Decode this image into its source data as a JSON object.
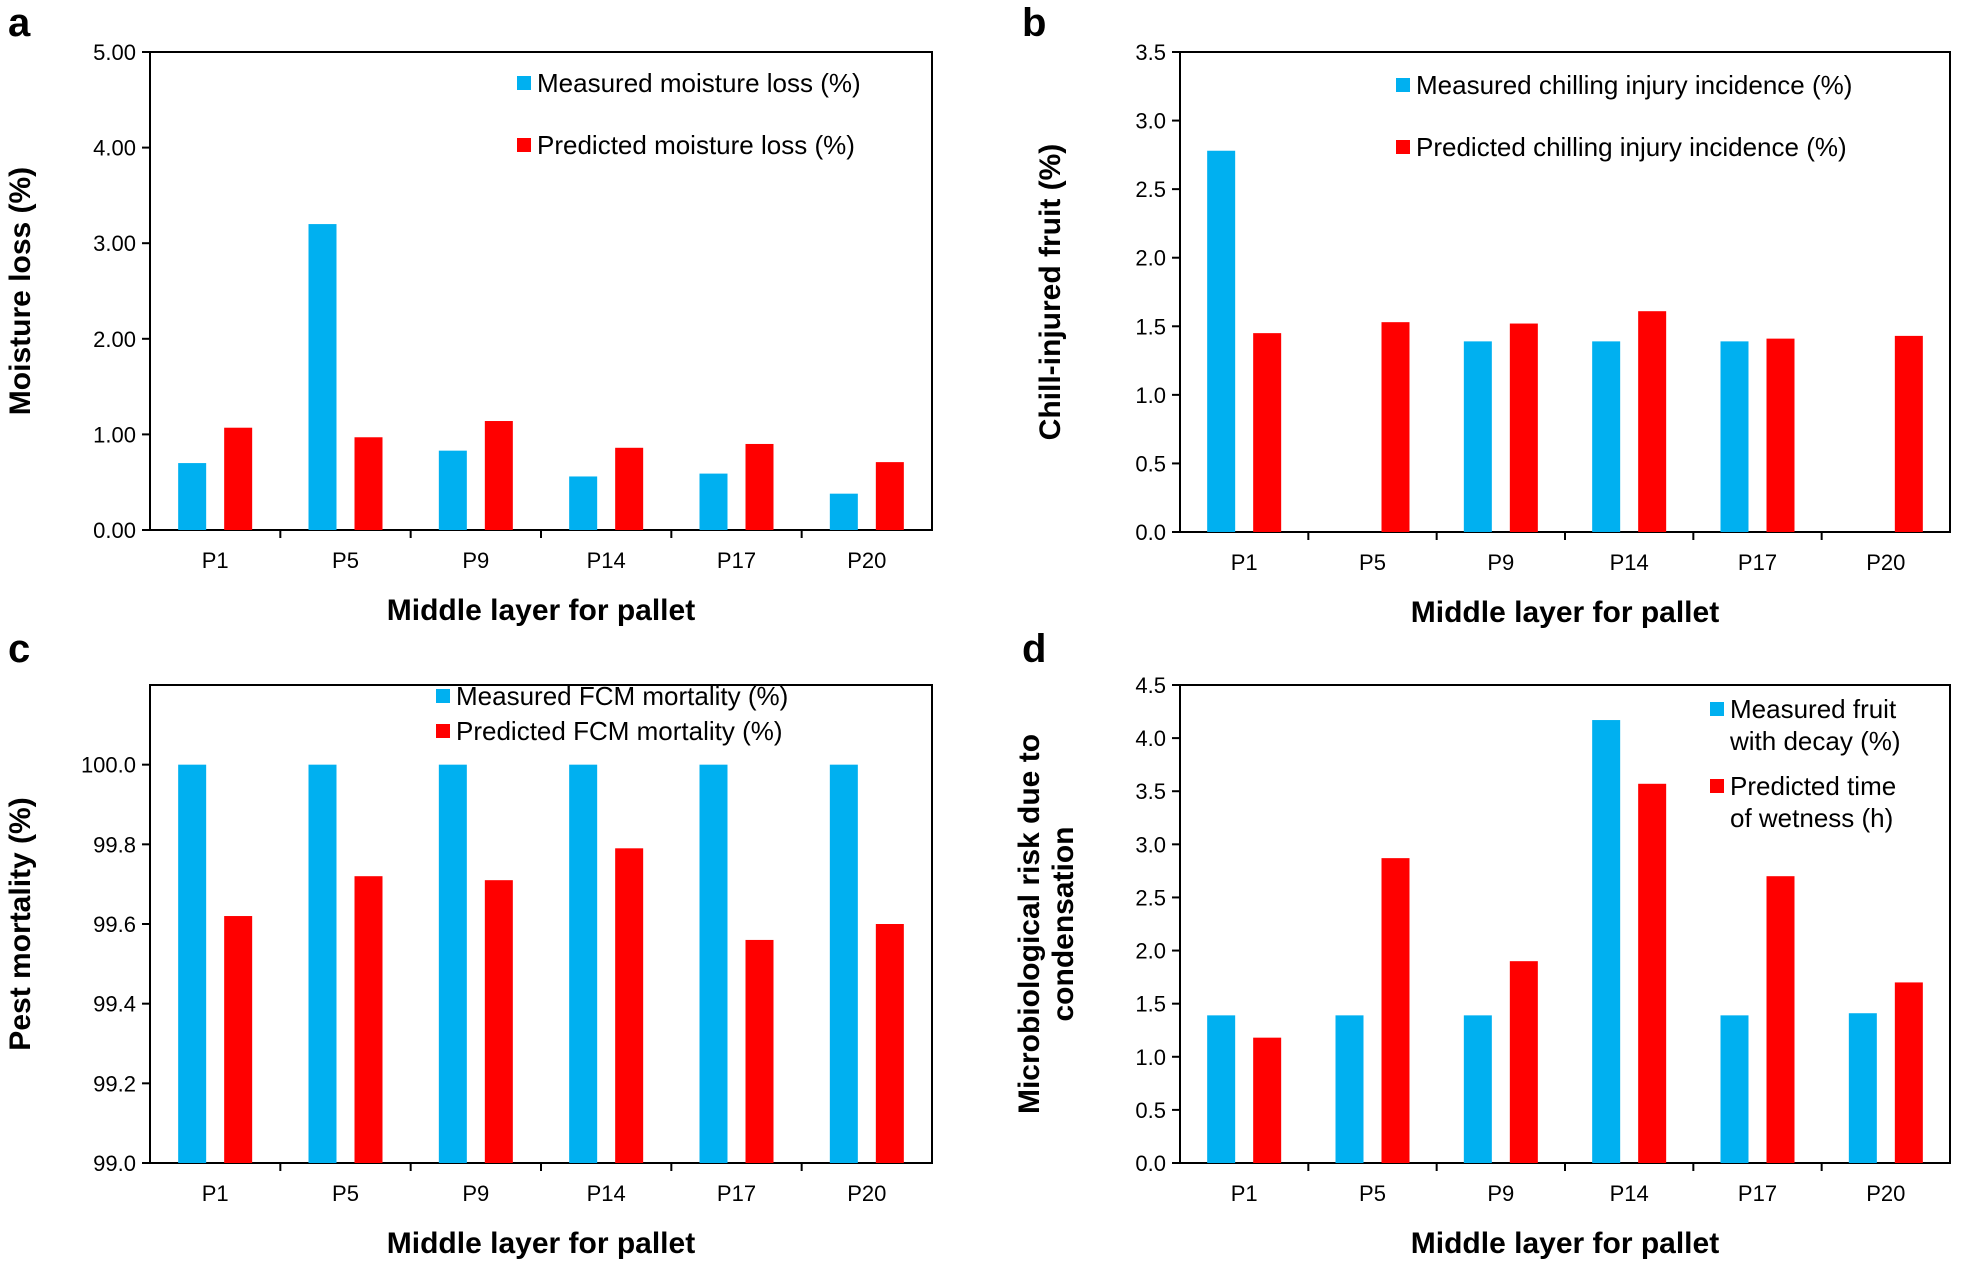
{
  "colors": {
    "measured": "#00B0F0",
    "predicted": "#FF0000",
    "axis": "#000000"
  },
  "chart_data": [
    {
      "panel": "a",
      "type": "bar",
      "categories": [
        "P1",
        "P5",
        "P9",
        "P14",
        "P17",
        "P20"
      ],
      "series": [
        {
          "name": "Measured moisture loss (%)",
          "values": [
            0.7,
            3.2,
            0.83,
            0.56,
            0.59,
            0.38
          ]
        },
        {
          "name": "Predicted moisture loss (%)",
          "values": [
            1.07,
            0.97,
            1.14,
            0.86,
            0.9,
            0.71
          ]
        }
      ],
      "xlabel": "Middle layer for pallet",
      "ylabel": [
        "Moisture loss (%)"
      ],
      "ylim": [
        0,
        5
      ],
      "yticks": [
        "0.00",
        "1.00",
        "2.00",
        "3.00",
        "4.00",
        "5.00"
      ],
      "legend_position": "top-right"
    },
    {
      "panel": "b",
      "type": "bar",
      "categories": [
        "P1",
        "P5",
        "P9",
        "P14",
        "P17",
        "P20"
      ],
      "series": [
        {
          "name": "Measured chilling injury incidence (%)",
          "values": [
            2.78,
            0,
            1.39,
            1.39,
            1.39,
            0
          ]
        },
        {
          "name": "Predicted chilling injury incidence (%)",
          "values": [
            1.45,
            1.53,
            1.52,
            1.61,
            1.41,
            1.43
          ]
        }
      ],
      "xlabel": "Middle layer for pallet",
      "ylabel": [
        "Chill-injured fruit (%)"
      ],
      "ylim": [
        0,
        3.5
      ],
      "yticks": [
        "0.0",
        "0.5",
        "1.0",
        "1.5",
        "2.0",
        "2.5",
        "3.0",
        "3.5"
      ],
      "legend_position": "top-right"
    },
    {
      "panel": "c",
      "type": "bar",
      "categories": [
        "P1",
        "P5",
        "P9",
        "P14",
        "P17",
        "P20"
      ],
      "series": [
        {
          "name": "Measured FCM mortality (%)",
          "values": [
            100.0,
            100.0,
            100.0,
            100.0,
            100.0,
            100.0
          ]
        },
        {
          "name": "Predicted FCM mortality (%)",
          "values": [
            99.62,
            99.72,
            99.71,
            99.79,
            99.56,
            99.6
          ]
        }
      ],
      "xlabel": "Middle layer for pallet",
      "ylabel": [
        "Pest mortality (%)"
      ],
      "ylim": [
        99.0,
        100.2
      ],
      "yticks": [
        "99.0",
        "99.2",
        "99.4",
        "99.6",
        "99.8",
        "100.0"
      ],
      "legend_position": "top-center"
    },
    {
      "panel": "d",
      "type": "bar",
      "categories": [
        "P1",
        "P5",
        "P9",
        "P14",
        "P17",
        "P20"
      ],
      "series": [
        {
          "name": "Measured fruit with decay (%)",
          "legend_lines": [
            "Measured fruit",
            "with decay (%)"
          ],
          "values": [
            1.39,
            1.39,
            1.39,
            4.17,
            1.39,
            1.41
          ]
        },
        {
          "name": "Predicted time of wetness (h)",
          "legend_lines": [
            "Predicted time",
            "of wetness (h)"
          ],
          "values": [
            1.18,
            2.87,
            1.9,
            3.57,
            2.7,
            1.7
          ]
        }
      ],
      "xlabel": "Middle layer for pallet",
      "ylabel": [
        "Microbiological risk due to",
        "condensation"
      ],
      "ylim": [
        0,
        4.5
      ],
      "yticks": [
        "0.0",
        "0.5",
        "1.0",
        "1.5",
        "2.0",
        "2.5",
        "3.0",
        "3.5",
        "4.0",
        "4.5"
      ],
      "legend_position": "top-right"
    }
  ]
}
